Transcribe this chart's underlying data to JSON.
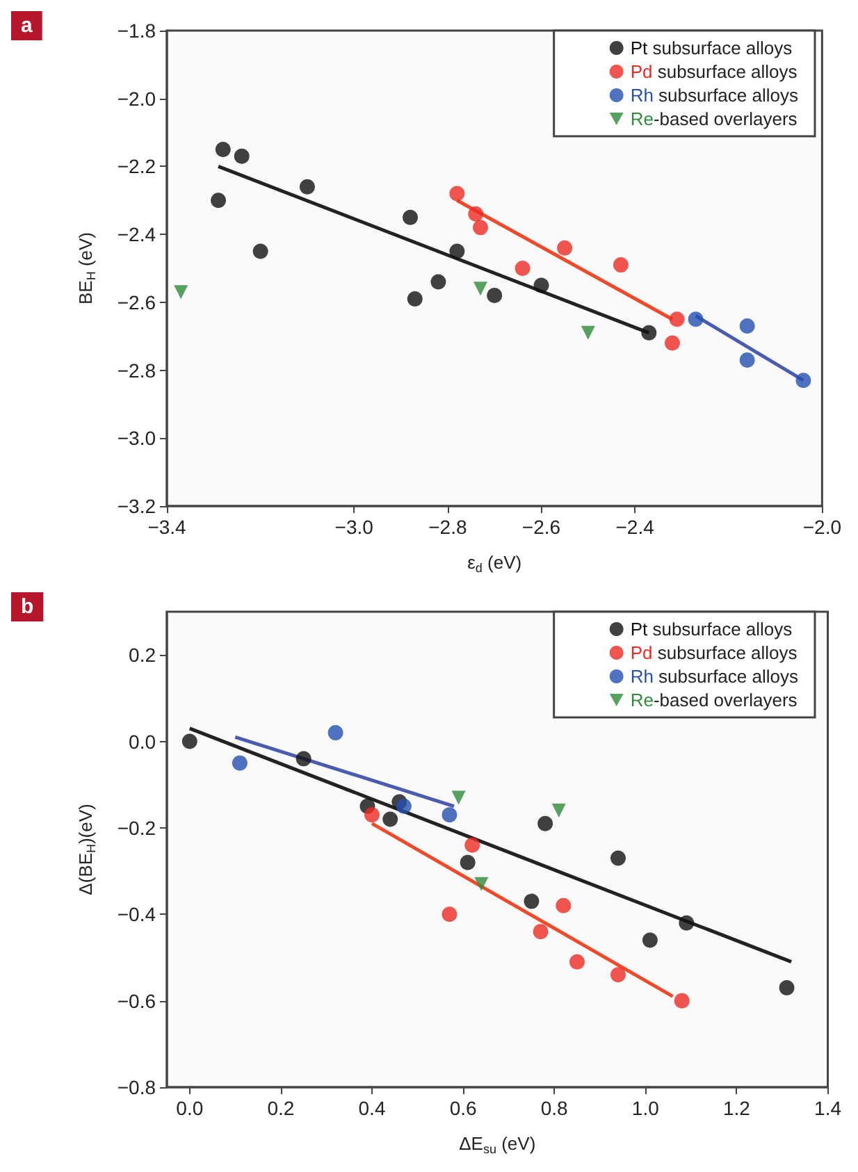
{
  "chart_data": [
    {
      "type": "scatter",
      "title": "a",
      "xlabel": "ε$_{d}$ (eV)",
      "ylabel": "BE$_{H}$ (eV)",
      "xlim": [
        -3.4,
        -2.0
      ],
      "ylim": [
        -3.2,
        -1.8
      ],
      "xticks": [
        {
          "value": -3.4,
          "label": "−3.4"
        },
        {
          "value": -3.0,
          "label": "−3.0"
        },
        {
          "value": -2.8,
          "label": "−2.8"
        },
        {
          "value": -2.6,
          "label": "−2.6"
        },
        {
          "value": -2.4,
          "label": "−2.4"
        },
        {
          "value": -2.0,
          "label": "−2.0"
        }
      ],
      "yticks": [
        {
          "value": -3.2,
          "label": "−3.2"
        },
        {
          "value": -3.0,
          "label": "−3.0"
        },
        {
          "value": -2.8,
          "label": "−2.8"
        },
        {
          "value": -2.6,
          "label": "−2.6"
        },
        {
          "value": -2.4,
          "label": "−2.4"
        },
        {
          "value": -2.2,
          "label": "−2.2"
        },
        {
          "value": -2.0,
          "label": "−2.0"
        },
        {
          "value": -1.8,
          "label": "−1.8"
        }
      ],
      "grid": false,
      "legend": "top right",
      "series": [
        {
          "type": "scatter",
          "name": "Pt subsurface alloys",
          "color": "#111111",
          "marker": "circle",
          "x": [
            -3.28,
            -3.24,
            -3.29,
            -3.2,
            -3.1,
            -2.88,
            -2.87,
            -2.82,
            -2.78,
            -2.7,
            -2.6,
            -2.37
          ],
          "values": [
            -2.15,
            -2.17,
            -2.3,
            -2.45,
            -2.26,
            -2.35,
            -2.59,
            -2.54,
            -2.45,
            -2.58,
            -2.55,
            -2.69
          ]
        },
        {
          "type": "scatter",
          "name": "Pd subsurface alloys",
          "color": "#ee2a24",
          "marker": "circle",
          "x": [
            -2.78,
            -2.74,
            -2.73,
            -2.64,
            -2.55,
            -2.43,
            -2.31,
            -2.32
          ],
          "values": [
            -2.28,
            -2.34,
            -2.38,
            -2.5,
            -2.44,
            -2.49,
            -2.65,
            -2.72
          ]
        },
        {
          "type": "scatter",
          "name": "Rh subsurface alloys",
          "color": "#2450b0",
          "marker": "circle",
          "x": [
            -2.27,
            -2.16,
            -2.16,
            -2.04
          ],
          "values": [
            -2.65,
            -2.67,
            -2.77,
            -2.83
          ]
        },
        {
          "type": "scatter",
          "name": "Re-based overlayers",
          "color": "#2e8b3a",
          "marker": "triangle",
          "x": [
            -3.37,
            -2.73,
            -2.5
          ],
          "values": [
            -2.57,
            -2.56,
            -2.69
          ]
        },
        {
          "type": "line",
          "color": "#222222",
          "x": [
            -3.29,
            -2.37
          ],
          "values": [
            -2.2,
            -2.69
          ]
        },
        {
          "type": "line",
          "color": "#f04a2a",
          "x": [
            -2.78,
            -2.32
          ],
          "values": [
            -2.3,
            -2.65
          ]
        },
        {
          "type": "line",
          "color": "#4a5cb0",
          "x": [
            -2.27,
            -2.04
          ],
          "values": [
            -2.64,
            -2.83
          ]
        }
      ]
    },
    {
      "type": "scatter",
      "title": "b",
      "xlabel": "ΔE$_{su}$ (eV)",
      "ylabel": "Δ(BE$_{H}$)(eV)",
      "xlim": [
        -0.05,
        1.4
      ],
      "ylim": [
        -0.8,
        0.3
      ],
      "xticks": [
        {
          "value": 0.0,
          "label": "0.0"
        },
        {
          "value": 0.2,
          "label": "0.2"
        },
        {
          "value": 0.4,
          "label": "0.4"
        },
        {
          "value": 0.6,
          "label": "0.6"
        },
        {
          "value": 0.8,
          "label": "0.8"
        },
        {
          "value": 1.0,
          "label": "1.0"
        },
        {
          "value": 1.2,
          "label": "1.2"
        },
        {
          "value": 1.4,
          "label": "1.4"
        }
      ],
      "yticks": [
        {
          "value": -0.8,
          "label": "−0.8"
        },
        {
          "value": -0.6,
          "label": "−0.6"
        },
        {
          "value": -0.4,
          "label": "−0.4"
        },
        {
          "value": -0.2,
          "label": "−0.2"
        },
        {
          "value": 0.0,
          "label": "0.0"
        },
        {
          "value": 0.2,
          "label": "0.2"
        }
      ],
      "grid": false,
      "legend": "top right",
      "series": [
        {
          "type": "scatter",
          "name": "Pt subsurface alloys",
          "color": "#111111",
          "marker": "circle",
          "x": [
            0.0,
            0.25,
            0.39,
            0.46,
            0.44,
            0.61,
            0.75,
            0.78,
            0.94,
            1.01,
            1.09,
            1.31
          ],
          "values": [
            0.0,
            -0.04,
            -0.15,
            -0.14,
            -0.18,
            -0.28,
            -0.37,
            -0.19,
            -0.27,
            -0.46,
            -0.42,
            -0.57
          ]
        },
        {
          "type": "scatter",
          "name": "Pd subsurface alloys",
          "color": "#ee2a24",
          "marker": "circle",
          "x": [
            0.4,
            0.62,
            0.57,
            0.82,
            0.77,
            0.85,
            0.94,
            1.08
          ],
          "values": [
            -0.17,
            -0.24,
            -0.4,
            -0.38,
            -0.44,
            -0.51,
            -0.54,
            -0.6
          ]
        },
        {
          "type": "scatter",
          "name": "Rh subsurface alloys",
          "color": "#2450b0",
          "marker": "circle",
          "x": [
            0.11,
            0.32,
            0.47,
            0.57
          ],
          "values": [
            -0.05,
            0.02,
            -0.15,
            -0.17
          ]
        },
        {
          "type": "scatter",
          "name": "Re-based overlayers",
          "color": "#2e8b3a",
          "marker": "triangle",
          "x": [
            0.59,
            0.81,
            0.64
          ],
          "values": [
            -0.13,
            -0.16,
            -0.33
          ]
        },
        {
          "type": "line",
          "color": "#222222",
          "x": [
            0.0,
            1.32
          ],
          "values": [
            0.03,
            -0.51
          ]
        },
        {
          "type": "line",
          "color": "#f04a2a",
          "x": [
            0.4,
            1.06
          ],
          "values": [
            -0.19,
            -0.59
          ]
        },
        {
          "type": "line",
          "color": "#4a5cb0",
          "x": [
            0.1,
            0.58
          ],
          "values": [
            0.01,
            -0.15
          ]
        }
      ]
    }
  ]
}
